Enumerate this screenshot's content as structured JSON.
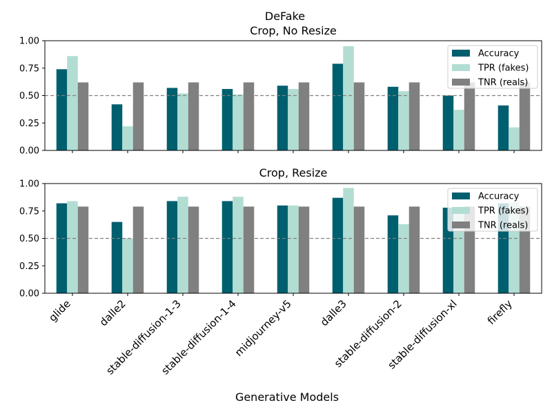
{
  "figure": {
    "title": "DeFake",
    "xlabel": "Generative Models"
  },
  "colors": {
    "Accuracy": "#005f6e",
    "TPR (fakes)": "#b2ddd3",
    "TNR (reals)": "#808080",
    "refline": "#808080"
  },
  "chart_data": [
    {
      "type": "bar",
      "title": "Crop, No Resize",
      "xlabel": "Generative Models",
      "ylabel": "",
      "ylim": [
        0,
        1
      ],
      "yticks": [
        "0.00",
        "0.25",
        "0.50",
        "0.75",
        "1.00"
      ],
      "reference_line": 0.5,
      "legend_position": "top-right",
      "categories": [
        "glide",
        "dalle2",
        "stable-diffusion-1-3",
        "stable-diffusion-1-4",
        "midjourney-v5",
        "dalle3",
        "stable-diffusion-2",
        "stable-diffusion-xl",
        "firefly"
      ],
      "series": [
        {
          "name": "Accuracy",
          "values": [
            0.74,
            0.42,
            0.57,
            0.56,
            0.59,
            0.79,
            0.58,
            0.5,
            0.41
          ]
        },
        {
          "name": "TPR (fakes)",
          "values": [
            0.86,
            0.22,
            0.52,
            0.51,
            0.56,
            0.95,
            0.54,
            0.37,
            0.21
          ]
        },
        {
          "name": "TNR (reals)",
          "values": [
            0.62,
            0.62,
            0.62,
            0.62,
            0.62,
            0.62,
            0.62,
            0.62,
            0.62
          ]
        }
      ]
    },
    {
      "type": "bar",
      "title": "Crop, Resize",
      "xlabel": "Generative Models",
      "ylabel": "",
      "ylim": [
        0,
        1
      ],
      "yticks": [
        "0.00",
        "0.25",
        "0.50",
        "0.75",
        "1.00"
      ],
      "reference_line": 0.5,
      "legend_position": "top-right",
      "categories": [
        "glide",
        "dalle2",
        "stable-diffusion-1-3",
        "stable-diffusion-1-4",
        "midjourney-v5",
        "dalle3",
        "stable-diffusion-2",
        "stable-diffusion-xl",
        "firefly"
      ],
      "series": [
        {
          "name": "Accuracy",
          "values": [
            0.82,
            0.65,
            0.84,
            0.84,
            0.8,
            0.87,
            0.71,
            0.78,
            0.82
          ]
        },
        {
          "name": "TPR (fakes)",
          "values": [
            0.84,
            0.5,
            0.88,
            0.88,
            0.8,
            0.96,
            0.63,
            0.77,
            0.83
          ]
        },
        {
          "name": "TNR (reals)",
          "values": [
            0.79,
            0.79,
            0.79,
            0.79,
            0.79,
            0.79,
            0.79,
            0.79,
            0.79
          ]
        }
      ]
    }
  ]
}
